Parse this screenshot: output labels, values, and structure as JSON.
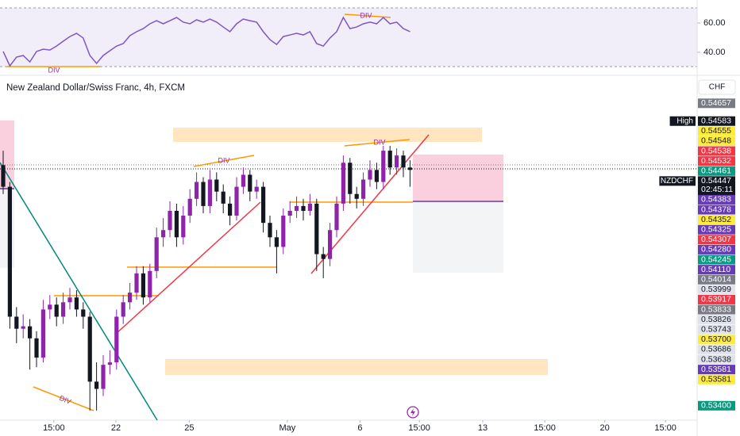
{
  "chart_data": {
    "type": "candlestick",
    "title": "New Zealand Dollar/Swiss Franc, 4h, FXCM",
    "currency": "CHF",
    "up_color": "#8e24aa",
    "down_color": "#131722",
    "ylim": [
      0.5334,
      0.5477
    ],
    "open": [
      0.544,
      0.5431,
      0.5377,
      0.5372,
      0.5373,
      0.5368,
      0.536,
      0.538,
      0.5382,
      0.5377,
      0.5383,
      0.5385,
      0.538,
      0.5377,
      0.535,
      0.5347,
      0.5357,
      0.5358,
      0.5377,
      0.5383,
      0.5387,
      0.5395,
      0.5385,
      0.5396,
      0.541,
      0.5413,
      0.5421,
      0.541,
      0.5419,
      0.5426,
      0.5433,
      0.5423,
      0.5434,
      0.5429,
      0.5424,
      0.5419,
      0.5431,
      0.5436,
      0.5429,
      0.5431,
      0.5416,
      0.541,
      0.5406,
      0.5419,
      0.5421,
      0.5423,
      0.5421,
      0.5424,
      0.5403,
      0.5401,
      0.5413,
      0.5424,
      0.5441,
      0.5428,
      0.5426,
      0.5434,
      0.5438,
      0.5433,
      0.5446,
      0.5439,
      0.5444,
      0.5439
    ],
    "high": [
      0.5446,
      0.5433,
      0.5381,
      0.5378,
      0.5376,
      0.5371,
      0.5384,
      0.5386,
      0.5385,
      0.5387,
      0.5389,
      0.5388,
      0.5383,
      0.5379,
      0.5358,
      0.5361,
      0.5363,
      0.538,
      0.5386,
      0.5391,
      0.5398,
      0.5398,
      0.5399,
      0.5414,
      0.5418,
      0.5425,
      0.5424,
      0.5423,
      0.543,
      0.5437,
      0.5435,
      0.5438,
      0.5437,
      0.5432,
      0.5427,
      0.5435,
      0.5439,
      0.5438,
      0.5434,
      0.5433,
      0.5419,
      0.5413,
      0.5422,
      0.5425,
      0.5427,
      0.5426,
      0.5428,
      0.5426,
      0.5406,
      0.5416,
      0.5427,
      0.5444,
      0.5443,
      0.5431,
      0.5437,
      0.5442,
      0.5441,
      0.5448,
      0.5448,
      0.5447,
      0.5446,
      0.5442
    ],
    "low": [
      0.5428,
      0.5372,
      0.5366,
      0.5368,
      0.5355,
      0.5356,
      0.5358,
      0.5376,
      0.5373,
      0.5374,
      0.538,
      0.5377,
      0.5372,
      0.5338,
      0.5338,
      0.5344,
      0.5353,
      0.5355,
      0.5374,
      0.538,
      0.5384,
      0.5382,
      0.5383,
      0.5393,
      0.5406,
      0.541,
      0.5406,
      0.5407,
      0.5416,
      0.5423,
      0.542,
      0.542,
      0.5425,
      0.542,
      0.5415,
      0.5417,
      0.5428,
      0.5425,
      0.5426,
      0.5412,
      0.5406,
      0.5395,
      0.5403,
      0.5416,
      0.5418,
      0.5417,
      0.5419,
      0.5396,
      0.5393,
      0.5398,
      0.541,
      0.5421,
      0.5424,
      0.5422,
      0.5423,
      0.5431,
      0.543,
      0.543,
      0.5436,
      0.5436,
      0.5435,
      0.5431
    ],
    "close": [
      0.5431,
      0.5377,
      0.5372,
      0.5373,
      0.5368,
      0.536,
      0.538,
      0.5382,
      0.5377,
      0.5383,
      0.5385,
      0.538,
      0.5377,
      0.535,
      0.5347,
      0.5357,
      0.5358,
      0.5377,
      0.5383,
      0.5387,
      0.5395,
      0.5385,
      0.5396,
      0.541,
      0.5413,
      0.5421,
      0.541,
      0.5419,
      0.5426,
      0.5433,
      0.5423,
      0.5434,
      0.5429,
      0.5424,
      0.5419,
      0.5431,
      0.5436,
      0.5429,
      0.5431,
      0.5416,
      0.541,
      0.5406,
      0.5419,
      0.5421,
      0.5423,
      0.5421,
      0.5424,
      0.5403,
      0.5401,
      0.5413,
      0.5424,
      0.5441,
      0.5428,
      0.5426,
      0.5434,
      0.5438,
      0.5433,
      0.5446,
      0.5439,
      0.5444,
      0.5439,
      0.5438
    ],
    "xticks": [
      {
        "value": 7.6,
        "label": "15:00"
      },
      {
        "value": 16.9,
        "label": "22"
      },
      {
        "value": 27.9,
        "label": "25"
      },
      {
        "value": 42.6,
        "label": "May"
      },
      {
        "value": 53.5,
        "label": "6"
      },
      {
        "value": 62.4,
        "label": "15:00"
      },
      {
        "value": 71.9,
        "label": "13"
      },
      {
        "value": 81.2,
        "label": "15:00"
      },
      {
        "value": 90.2,
        "label": "20"
      },
      {
        "value": 99.3,
        "label": "15:00"
      }
    ],
    "price_labels": [
      {
        "value": 0.54657,
        "label": "0.54657",
        "color": "#787b86",
        "text_color": "#ffffff"
      },
      {
        "value": 0.54583,
        "label": "0.54583",
        "color": "#131722",
        "text_color": "#ffffff",
        "tag": "High"
      },
      {
        "value": 0.54555,
        "label": "0.54555",
        "color": "#ffeb3b",
        "text_color": "#131722"
      },
      {
        "value": 0.54548,
        "label": "0.54548",
        "color": "#ffeb3b",
        "text_color": "#131722"
      },
      {
        "value": 0.54538,
        "label": "0.54538",
        "color": "#f23645",
        "text_color": "#ffffff"
      },
      {
        "value": 0.54532,
        "label": "0.54532",
        "color": "#f23645",
        "text_color": "#ffffff"
      },
      {
        "value": 0.54461,
        "label": "0.54461",
        "color": "#089981",
        "text_color": "#ffffff"
      },
      {
        "value": 0.54447,
        "label": "0.54447",
        "color": "#131722",
        "text_color": "#ffffff",
        "tag": "NZDCHF",
        "countdown": "02:45:11"
      },
      {
        "value": 0.54383,
        "label": "0.54383",
        "color": "#673ab7",
        "text_color": "#ffffff"
      },
      {
        "value": 0.54378,
        "label": "0.54378",
        "color": "#673ab7",
        "text_color": "#ffffff"
      },
      {
        "value": 0.54352,
        "label": "0.54352",
        "color": "#ffeb3b",
        "text_color": "#131722"
      },
      {
        "value": 0.54325,
        "label": "0.54325",
        "color": "#673ab7",
        "text_color": "#ffffff"
      },
      {
        "value": 0.54307,
        "label": "0.54307",
        "color": "#f23645",
        "text_color": "#ffffff"
      },
      {
        "value": 0.5428,
        "label": "0.54280",
        "color": "#673ab7",
        "text_color": "#ffffff"
      },
      {
        "value": 0.54245,
        "label": "0.54245",
        "color": "#089981",
        "text_color": "#ffffff"
      },
      {
        "value": 0.5411,
        "label": "0.54110",
        "color": "#673ab7",
        "text_color": "#ffffff"
      },
      {
        "value": 0.54014,
        "label": "0.54014",
        "color": "#787b86",
        "text_color": "#ffffff"
      },
      {
        "value": 0.53999,
        "label": "0.53999",
        "color": "#e0e3eb",
        "text_color": "#131722"
      },
      {
        "value": 0.53917,
        "label": "0.53917",
        "color": "#f23645",
        "text_color": "#ffffff"
      },
      {
        "value": 0.53833,
        "label": "0.53833",
        "color": "#787b86",
        "text_color": "#ffffff"
      },
      {
        "value": 0.53826,
        "label": "0.53826",
        "color": "#e0e3eb",
        "text_color": "#131722"
      },
      {
        "value": 0.53743,
        "label": "0.53743",
        "color": "#e0e3eb",
        "text_color": "#131722"
      },
      {
        "value": 0.537,
        "label": "0.53700",
        "color": "#ffeb3b",
        "text_color": "#131722"
      },
      {
        "value": 0.53686,
        "label": "0.53686",
        "color": "#e0e3eb",
        "text_color": "#131722"
      },
      {
        "value": 0.53638,
        "label": "0.53638",
        "color": "#e0e3eb",
        "text_color": "#131722"
      },
      {
        "value": 0.53581,
        "label": "0.53581",
        "color": "#673ab7",
        "text_color": "#ffffff"
      },
      {
        "value": 0.53581,
        "label": "0.53581",
        "color": "#ffeb3b",
        "text_color": "#131722"
      },
      {
        "value": 0.534,
        "label": "0.53400",
        "color": "#089981",
        "text_color": "#ffffff"
      }
    ],
    "annotations": [
      "DIV",
      "DIV",
      "DIV"
    ],
    "rsi": {
      "color": "#7e57c2",
      "ylim": [
        26,
        75.7
      ],
      "yticks": [
        {
          "value": 60,
          "label": "60.00"
        },
        {
          "value": 40,
          "label": "40.00"
        }
      ],
      "band": [
        70,
        30
      ],
      "annotations": [
        "DIV",
        "DIV"
      ],
      "values": [
        40.6,
        30.8,
        36.8,
        37.9,
        33.5,
        40.6,
        42.2,
        41.6,
        44.3,
        47.6,
        50.8,
        53.0,
        49.8,
        37.9,
        32.5,
        37.9,
        41.1,
        44.3,
        46.0,
        51.4,
        54.1,
        56.2,
        59.5,
        61.6,
        59.5,
        61.6,
        63.8,
        60.6,
        59.5,
        62.2,
        60.6,
        62.7,
        60.6,
        57.3,
        54.1,
        59.5,
        62.7,
        61.6,
        60.6,
        54.1,
        48.7,
        45.4,
        50.8,
        51.9,
        53.0,
        51.9,
        54.1,
        46.0,
        44.3,
        49.8,
        54.1,
        63.8,
        56.2,
        57.3,
        59.5,
        60.6,
        59.5,
        63.8,
        59.5,
        60.6,
        56.2,
        54.1
      ]
    }
  }
}
